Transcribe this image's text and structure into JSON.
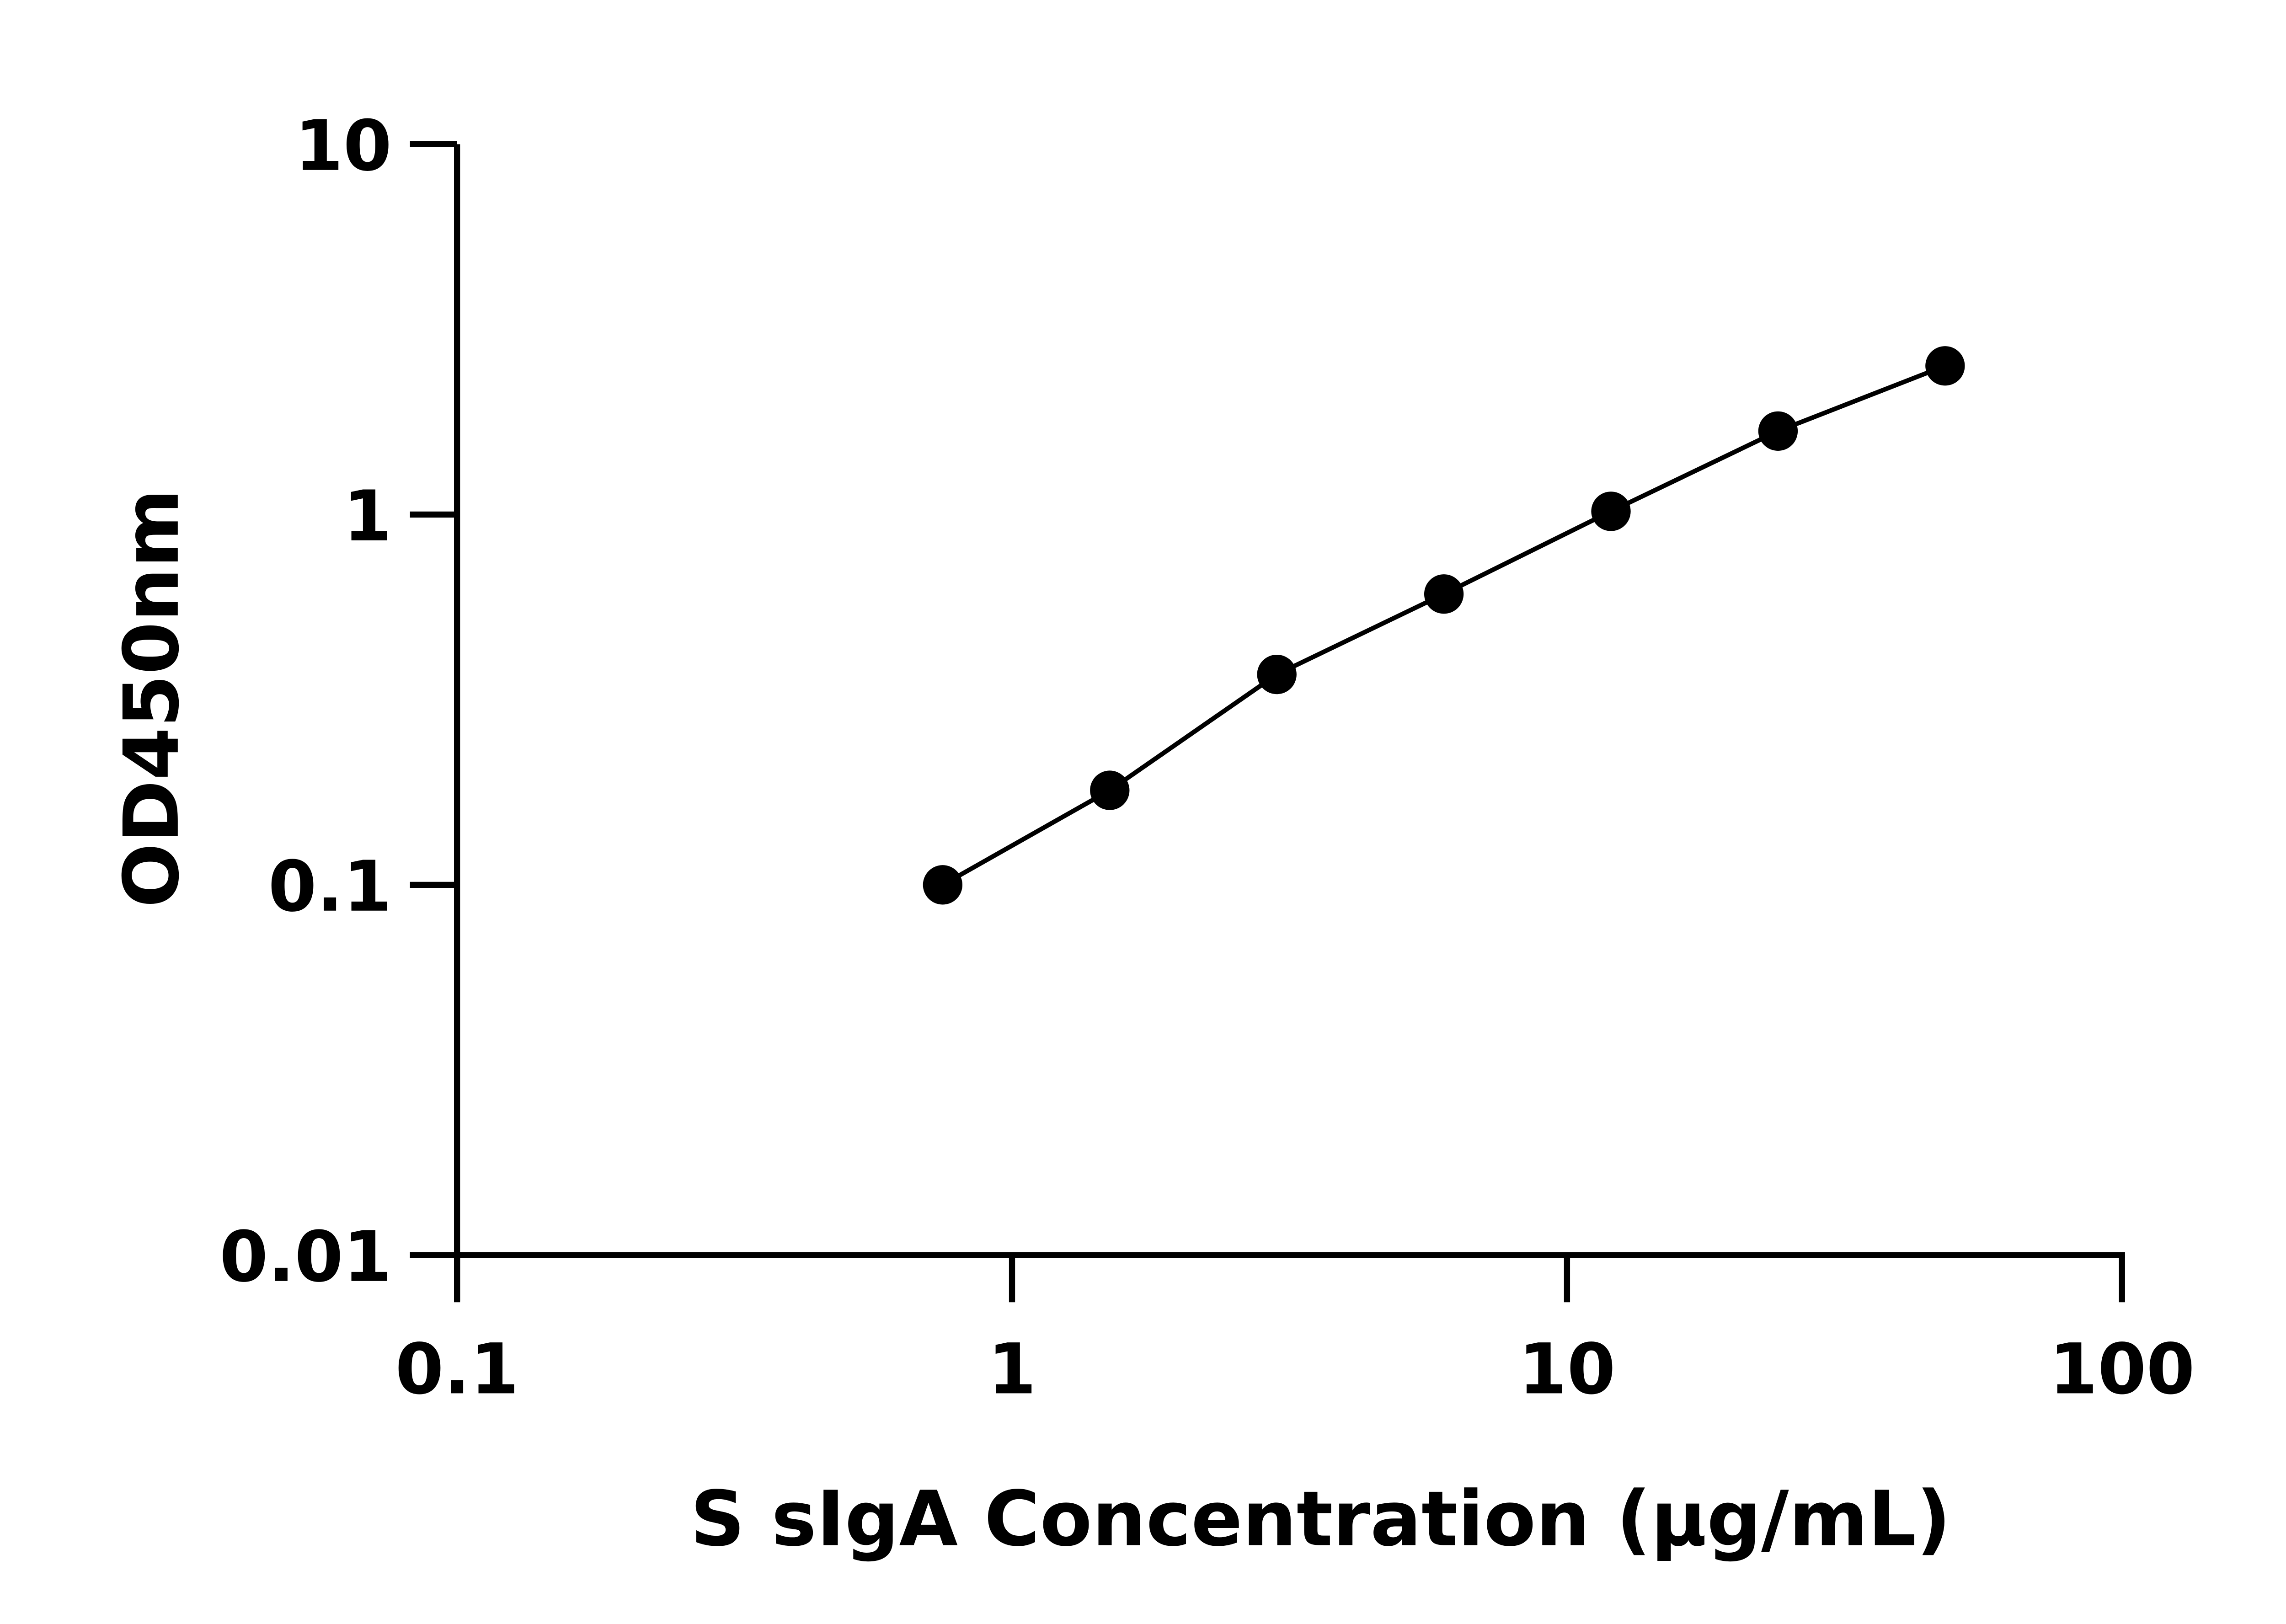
{
  "chart_data": {
    "type": "line",
    "title": "",
    "xlabel": "S sIgA Concentration (μg/mL)",
    "ylabel": "OD450nm",
    "x_scale": "log",
    "y_scale": "log",
    "xlim": [
      0.1,
      100
    ],
    "ylim": [
      0.01,
      10
    ],
    "x_ticks": [
      "0.1",
      "1",
      "10",
      "100"
    ],
    "y_ticks": [
      "0.01",
      "0.1",
      "1",
      "10"
    ],
    "grid": false,
    "legend": "none",
    "marker": "filled-circle",
    "color": "#000000",
    "series": [
      {
        "x": [
          0.75,
          1.5,
          3,
          6,
          12,
          24,
          48
        ],
        "y": [
          0.1,
          0.18,
          0.37,
          0.61,
          1.02,
          1.68,
          2.52
        ]
      }
    ]
  }
}
